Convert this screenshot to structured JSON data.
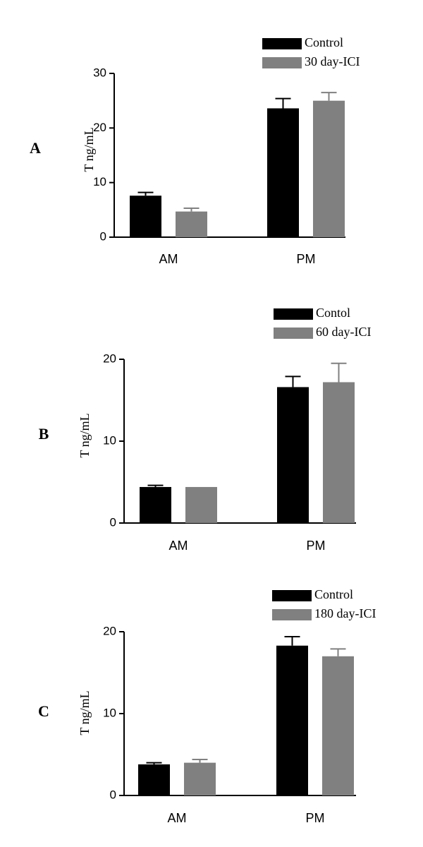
{
  "chart_data": [
    {
      "type": "bar",
      "panel_label": "A",
      "ylabel": "T ng/mL",
      "categories": [
        "AM",
        "PM"
      ],
      "ylim": [
        0,
        30
      ],
      "yticks": [
        0,
        10,
        20,
        30
      ],
      "series": [
        {
          "name": "Control",
          "color": "#000000",
          "values": [
            7.6,
            23.6
          ],
          "errors": [
            0.6,
            1.8
          ]
        },
        {
          "name": "30 day-ICI",
          "color": "#808080",
          "values": [
            4.7,
            25.0
          ],
          "errors": [
            0.6,
            1.5
          ]
        }
      ],
      "legend_position": "top-right",
      "grid": false
    },
    {
      "type": "bar",
      "panel_label": "B",
      "ylabel": "T ng/mL",
      "categories": [
        "AM",
        "PM"
      ],
      "ylim": [
        0,
        20
      ],
      "yticks": [
        0,
        10,
        20
      ],
      "series": [
        {
          "name": "Contol",
          "color": "#000000",
          "values": [
            4.4,
            16.6
          ],
          "errors": [
            0.2,
            1.3
          ]
        },
        {
          "name": "60 day-ICI",
          "color": "#808080",
          "values": [
            4.4,
            17.2
          ],
          "errors": [
            0.0,
            2.3
          ]
        }
      ],
      "legend_position": "top-right",
      "grid": false
    },
    {
      "type": "bar",
      "panel_label": "C",
      "ylabel": "T ng/mL",
      "categories": [
        "AM",
        "PM"
      ],
      "ylim": [
        0,
        20
      ],
      "yticks": [
        0,
        10,
        20
      ],
      "series": [
        {
          "name": "Control",
          "color": "#000000",
          "values": [
            3.8,
            18.3
          ],
          "errors": [
            0.2,
            1.1
          ]
        },
        {
          "name": "180 day-ICI",
          "color": "#808080",
          "values": [
            4.0,
            17.0
          ],
          "errors": [
            0.4,
            0.9
          ]
        }
      ],
      "legend_position": "top-right",
      "grid": false
    }
  ]
}
